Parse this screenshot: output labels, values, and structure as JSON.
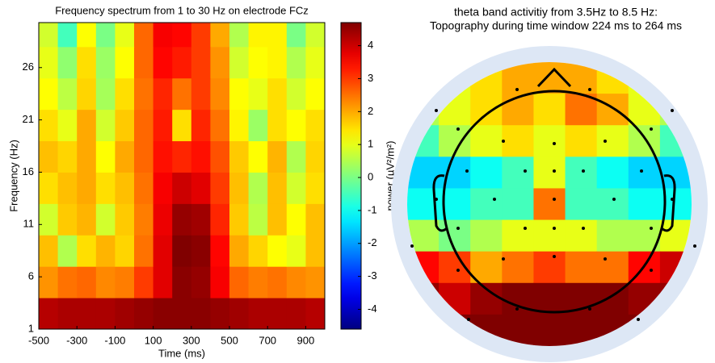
{
  "chart_data": [
    {
      "type": "heatmap",
      "title": "Frequency spectrum from 1 to 30 Hz on electrode FCz",
      "xlabel": "Time (ms)",
      "ylabel": "Frequency (Hz)",
      "colorbar_label": "power (µV²/m²)",
      "xlim": [
        -500,
        1000
      ],
      "ylim": [
        1,
        30.3
      ],
      "xticks": [
        -500,
        -300,
        -100,
        100,
        300,
        500,
        700,
        900
      ],
      "yticks": [
        1,
        6,
        11,
        16,
        21,
        26
      ],
      "clim": [
        -4.6,
        4.7
      ],
      "cticks": [
        -4,
        -3,
        -2,
        -1,
        0,
        1,
        2,
        3,
        4
      ],
      "colormap": "jet",
      "xbins": [
        -500,
        -400,
        -300,
        -200,
        -100,
        0,
        100,
        200,
        300,
        400,
        500,
        600,
        700,
        800,
        900,
        1000
      ],
      "ybins": [
        1,
        4,
        7,
        10,
        13,
        16,
        19,
        22,
        25,
        28,
        30.3
      ],
      "values": [
        [
          4.2,
          4.3,
          4.3,
          4.3,
          4.4,
          4.5,
          4.6,
          4.6,
          4.6,
          4.5,
          4.4,
          4.3,
          4.3,
          4.3,
          4.2
        ],
        [
          2.2,
          2.5,
          2.6,
          2.3,
          2.4,
          3,
          3.8,
          4.6,
          4.5,
          3.6,
          2.6,
          2.4,
          2.5,
          2.3,
          2.2
        ],
        [
          1.8,
          0.5,
          1.5,
          1.9,
          1.6,
          2.5,
          3.8,
          4.7,
          4.6,
          3.5,
          2,
          1.6,
          1.2,
          1,
          1.8
        ],
        [
          0.8,
          1.7,
          1.9,
          0.8,
          1.7,
          2.4,
          3.7,
          4.5,
          4.4,
          3.2,
          1.7,
          0.6,
          1.8,
          1.2,
          1.8
        ],
        [
          1.5,
          1.8,
          2,
          1.5,
          1.8,
          2.5,
          3.6,
          4,
          3.8,
          3,
          1.8,
          0.5,
          1.8,
          0.8,
          1.5
        ],
        [
          1.8,
          1.6,
          2,
          1.2,
          2,
          2.6,
          3.4,
          3.2,
          3.4,
          2.8,
          1.7,
          1.2,
          1.9,
          0.5,
          1.6
        ],
        [
          1.5,
          1,
          2,
          0.8,
          1.7,
          2.6,
          3.3,
          1.5,
          3.2,
          2.5,
          1.3,
          0.3,
          1.5,
          1.2,
          1.5
        ],
        [
          1.2,
          0.6,
          1.6,
          0.4,
          1.5,
          2.5,
          3.2,
          2.5,
          3,
          2.3,
          1.2,
          1,
          1.5,
          0.8,
          1.2
        ],
        [
          1,
          0.2,
          1.5,
          0.3,
          1.2,
          2.6,
          3.5,
          3.3,
          3,
          2.2,
          0.8,
          1.2,
          1.3,
          0.5,
          1
        ],
        [
          0.8,
          -0.5,
          1.2,
          0,
          1,
          2.6,
          3.6,
          3.5,
          3,
          2,
          0.5,
          1.3,
          1.3,
          0,
          0.8
        ]
      ]
    },
    {
      "type": "topomap",
      "title": [
        "theta band activitiy from 3.5Hz to 8.5 Hz:",
        "Topography during time window 224 ms to 264 ms"
      ],
      "values": [
        [
          1,
          1,
          1.5,
          2,
          2,
          2,
          1.5,
          1,
          1
        ],
        [
          0.5,
          1,
          1.5,
          2,
          1.5,
          2.5,
          2,
          1,
          0.5
        ],
        [
          -0.5,
          0.5,
          1,
          1.5,
          1,
          1.5,
          1,
          0.5,
          -0.5
        ],
        [
          -1.5,
          -1.5,
          -1,
          -0.5,
          1,
          -0.5,
          -1,
          -1.5,
          -1.5
        ],
        [
          -1,
          -1,
          -0.5,
          -0.5,
          2.5,
          -0.5,
          -0.5,
          -1,
          -1
        ],
        [
          0.5,
          0,
          0.5,
          1,
          1,
          1,
          0.5,
          0.5,
          1
        ],
        [
          3.5,
          3,
          2,
          2.5,
          3,
          2.5,
          2.5,
          3.5,
          4
        ],
        [
          4.5,
          4,
          4.5,
          4.7,
          4.7,
          4.7,
          4.7,
          4.5,
          4.5
        ],
        [
          4.7,
          4.7,
          4.7,
          4.7,
          4.7,
          4.7,
          4.7,
          4.7,
          4.7
        ]
      ]
    }
  ]
}
